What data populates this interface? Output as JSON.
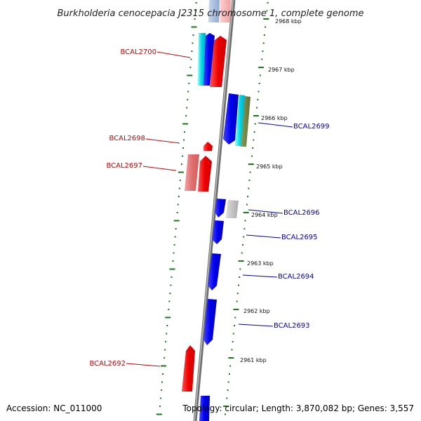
{
  "title": "Burkholderia cenocepacia J2315 chromosome 1, complete genome",
  "footer": {
    "accession": "Accession: NC_011000",
    "topology": "Topology: circular; Length: 3,870,082 bp; Genes: 3,557"
  },
  "colors": {
    "reverse_label": "#cc0000",
    "forward_label": "#0000bb",
    "tick_marks": "#1a7a1a",
    "backbone": "#8a8a8a"
  },
  "kbp_ticks": [
    "2968 kbp",
    "2967 kbp",
    "2966 kbp",
    "2965 kbp",
    "2964 kbp",
    "2963 kbp",
    "2962 kbp",
    "2961 kbp"
  ],
  "gene_labels": [
    {
      "text": "BCAL2700",
      "strand": "reverse"
    },
    {
      "text": "BCAL2699",
      "strand": "forward"
    },
    {
      "text": "BCAL2698",
      "strand": "reverse"
    },
    {
      "text": "BCAL2697",
      "strand": "reverse"
    },
    {
      "text": "BCAL2696",
      "strand": "forward"
    },
    {
      "text": "BCAL2695",
      "strand": "forward"
    },
    {
      "text": "BCAL2694",
      "strand": "forward"
    },
    {
      "text": "BCAL2693",
      "strand": "forward"
    },
    {
      "text": "BCAL2692",
      "strand": "reverse"
    }
  ]
}
